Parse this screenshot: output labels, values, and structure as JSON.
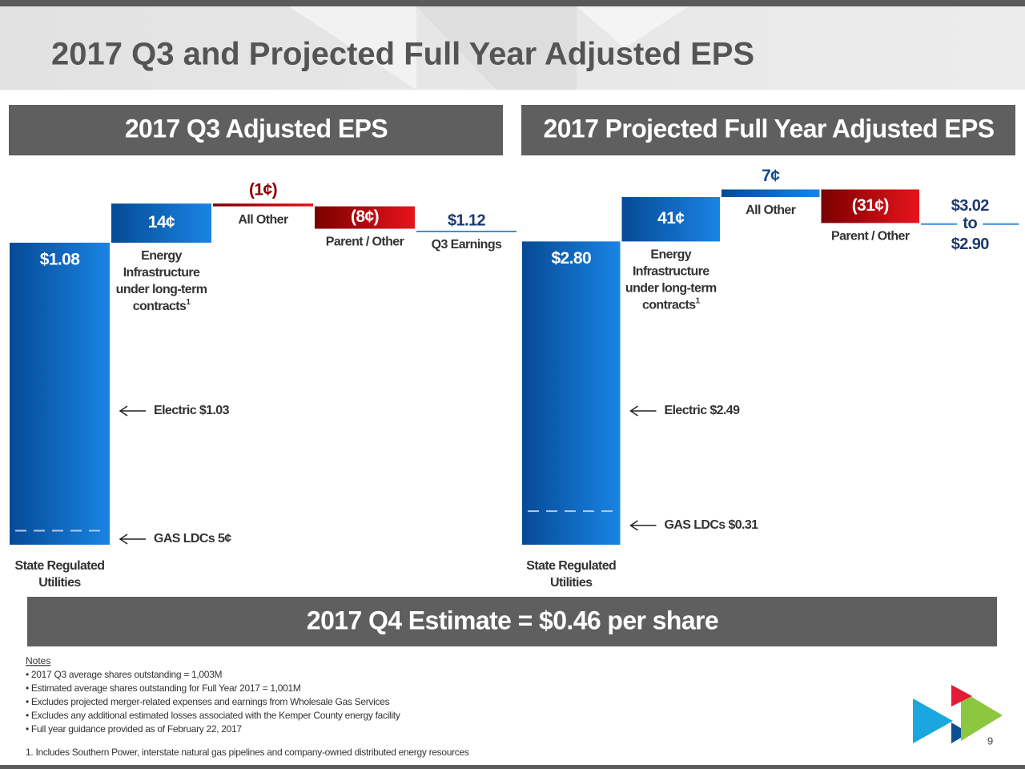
{
  "title": "2017 Q3 and Projected Full Year Adjusted EPS",
  "chart_data": [
    {
      "type": "waterfall",
      "title": "2017 Q3 Adjusted EPS",
      "categories": [
        [
          "State Regulated",
          "Utilities"
        ],
        [
          "Energy",
          "Infrastructure",
          "under long-term",
          "contracts"
        ],
        [
          "All Other"
        ],
        [
          "Parent / Other"
        ],
        [
          "Q3 Earnings"
        ]
      ],
      "category_footnotes": [
        null,
        "1",
        null,
        null,
        null
      ],
      "measure": [
        "absolute",
        "relative",
        "relative",
        "relative",
        "total"
      ],
      "values": [
        1.08,
        0.14,
        -0.01,
        -0.08,
        1.12
      ],
      "value_labels": [
        "$1.08",
        "14¢",
        "(1¢)",
        "(8¢)",
        "$1.12"
      ],
      "colors": {
        "increase": [
          "#064a96",
          "#1a84e4"
        ],
        "decrease": [
          "#7a0000",
          "#e8141c"
        ],
        "total": "#3a8ee0"
      },
      "ylim": [
        0,
        1.375
      ],
      "annotations": [
        {
          "text": "Electric $1.03"
        },
        {
          "text": "GAS LDCs 5¢",
          "value": 0.05
        }
      ]
    },
    {
      "type": "waterfall",
      "title": "2017 Projected Full Year Adjusted EPS",
      "categories": [
        [
          "State Regulated",
          "Utilities"
        ],
        [
          "Energy",
          "Infrastructure",
          "under long-term",
          "contracts"
        ],
        [
          "All Other"
        ],
        [
          "Parent / Other"
        ],
        null
      ],
      "category_footnotes": [
        null,
        "1",
        null,
        null,
        null
      ],
      "measure": [
        "absolute",
        "relative",
        "relative",
        "relative",
        "total"
      ],
      "values": [
        2.8,
        0.41,
        0.07,
        -0.31,
        null
      ],
      "value_labels": [
        "$2.80",
        "41¢",
        "7¢",
        "(31¢)",
        null
      ],
      "total_range": [
        3.02,
        2.9
      ],
      "total_range_labels": [
        "$3.02",
        "$2.90"
      ],
      "range_word": "to",
      "colors": {
        "increase": [
          "#064a96",
          "#1a84e4"
        ],
        "decrease": [
          "#7a0000",
          "#e8141c"
        ],
        "total": "#3a8ee0"
      },
      "ylim": [
        0,
        3.55
      ],
      "annotations": [
        {
          "text": "Electric $2.49"
        },
        {
          "text": "GAS LDCs $0.31",
          "value": 0.31
        }
      ]
    }
  ],
  "banner": "2017 Q4 Estimate = $0.46 per share",
  "notes": {
    "heading": "Notes",
    "items": [
      "2017 Q3 average shares outstanding = 1,003M",
      "Estimated average shares outstanding for Full Year 2017 = 1,001M",
      "Excludes projected merger-related expenses and earnings from Wholesale Gas Services",
      "Excludes any additional estimated losses associated with the Kemper County energy facility",
      "Full year guidance provided as of February 22, 2017"
    ]
  },
  "footnote": "1.  Includes Southern Power, interstate natural gas pipelines and company-owned distributed energy resources",
  "page_number": 9
}
